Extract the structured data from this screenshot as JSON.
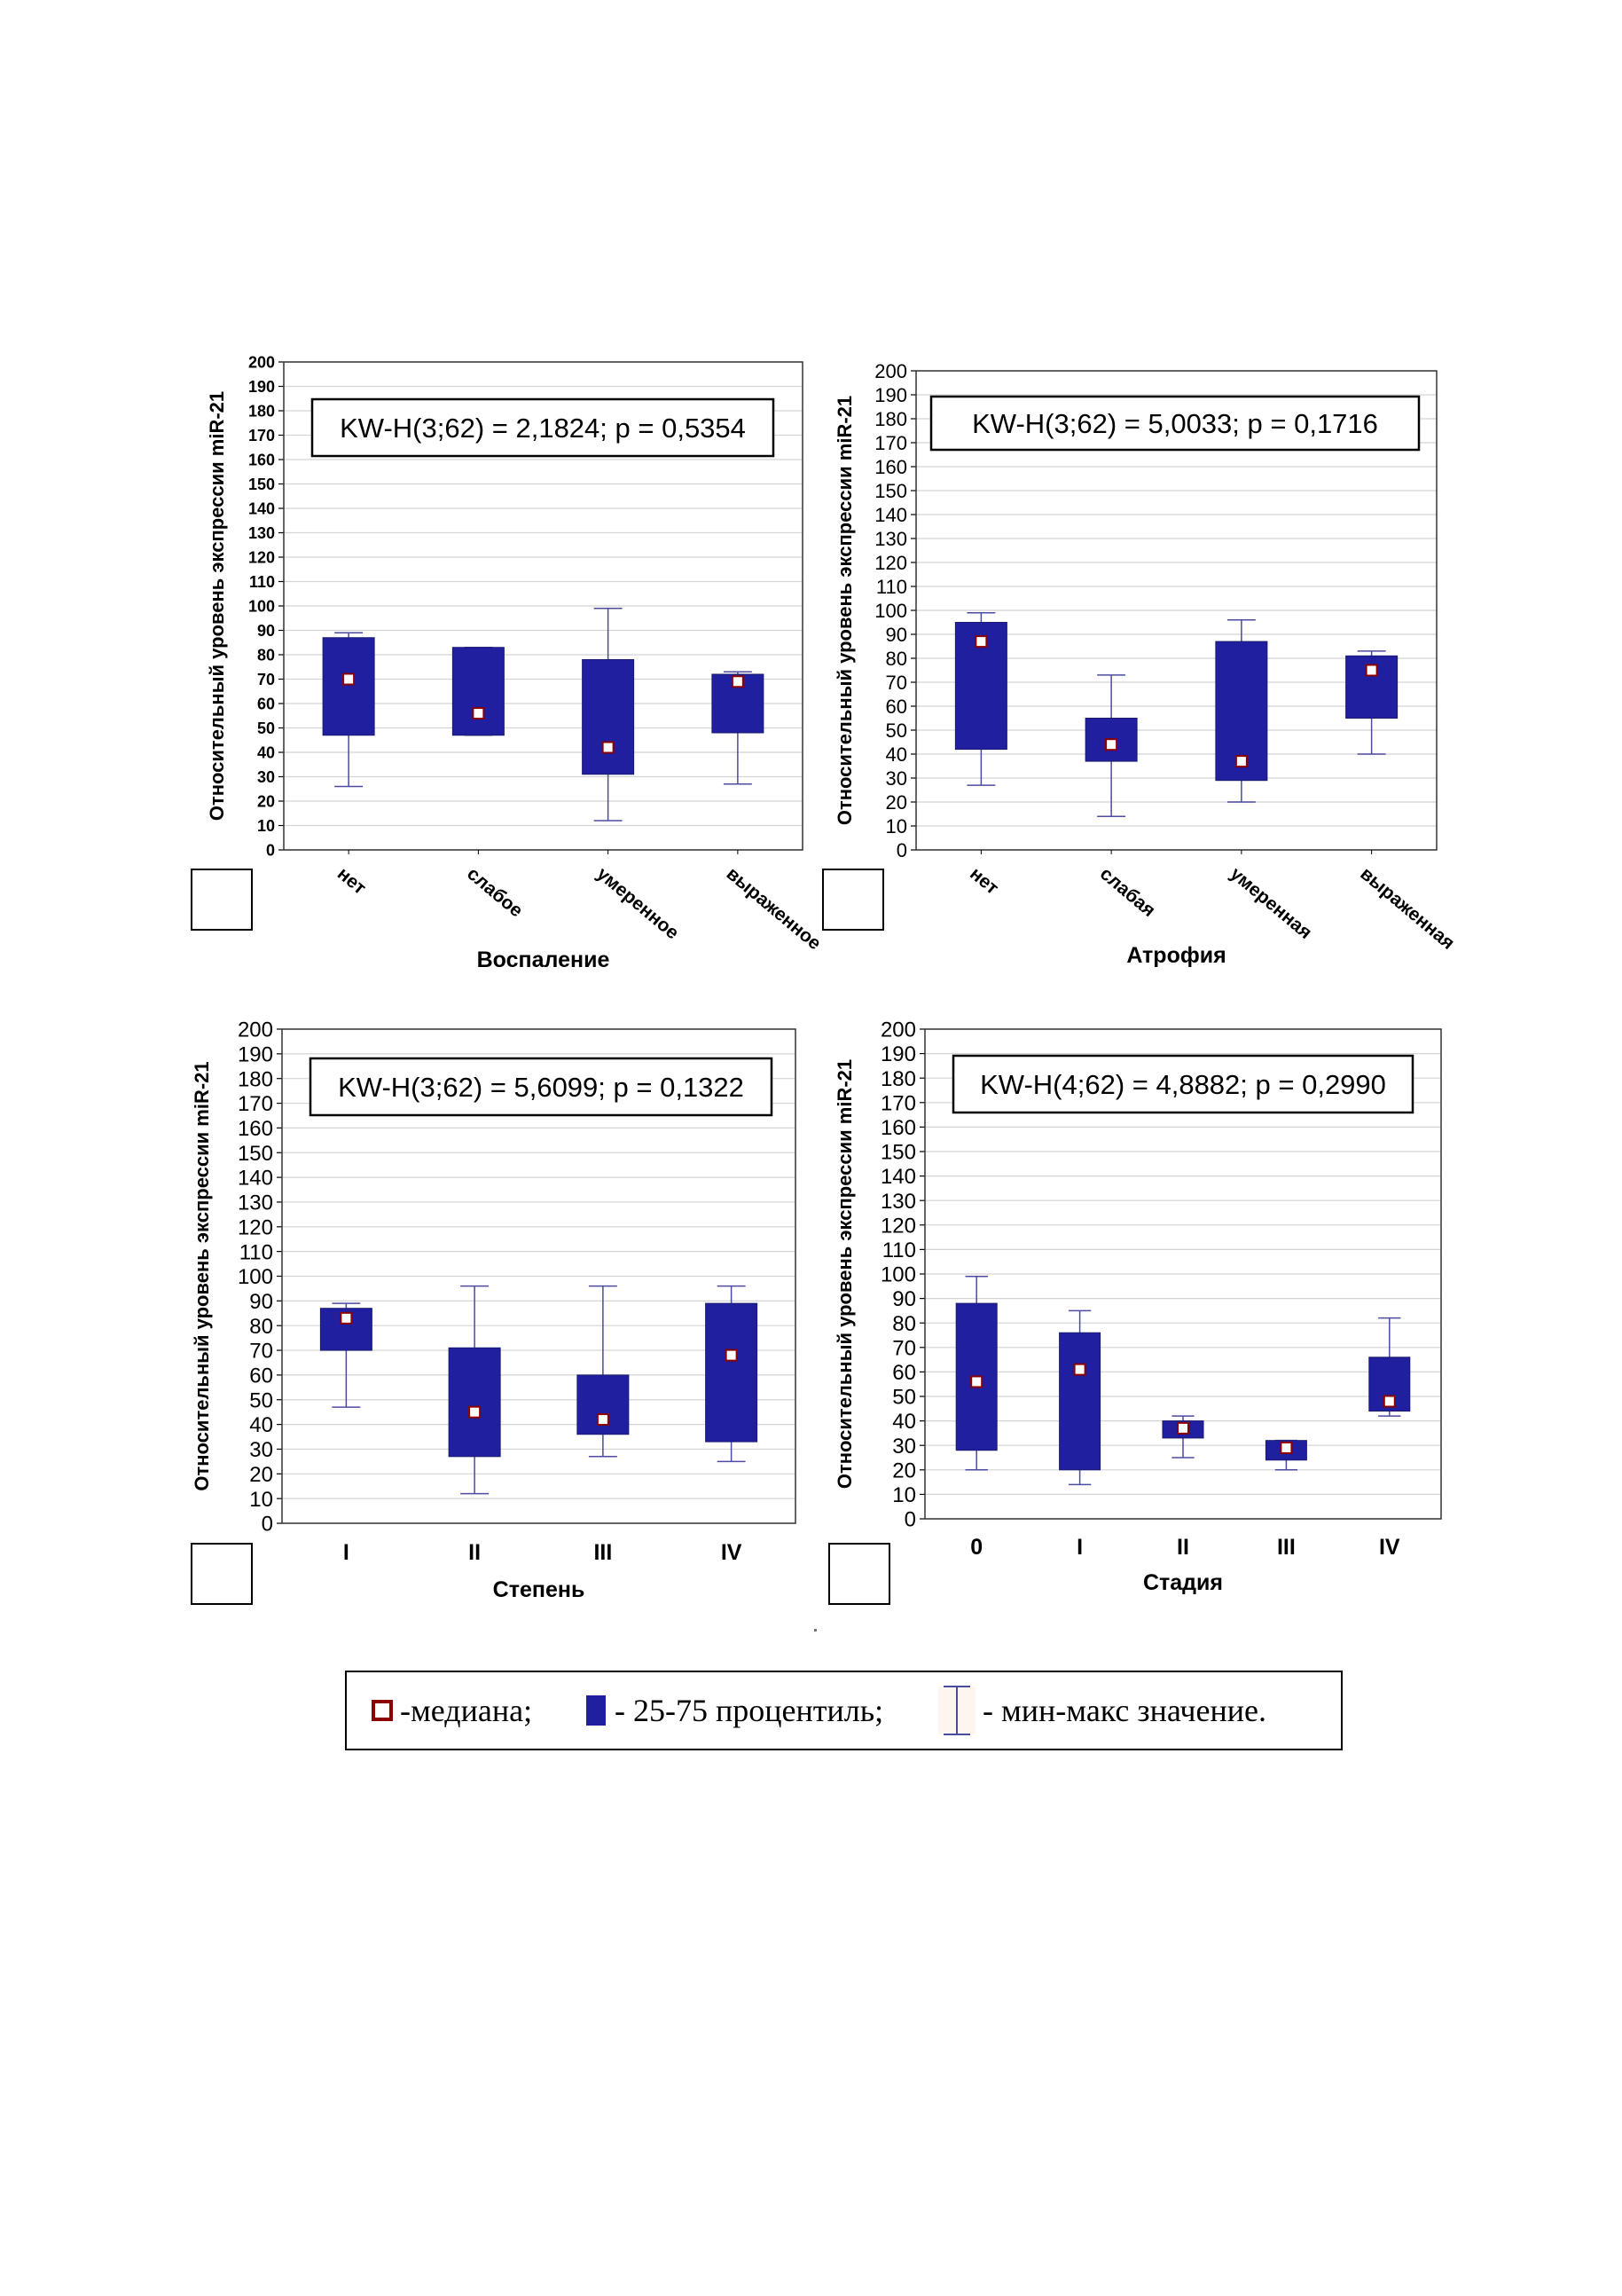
{
  "chart_data": [
    {
      "type": "box",
      "panel_id": "p1",
      "stat_text": "KW-H(3;62) = 2,1824; p = 0,5354",
      "ylabel": "Относительный уровень экспрессии miR-21",
      "xlabel": "Воспаление",
      "ylim": [
        0,
        200
      ],
      "ytick_step": 10,
      "yticks_bold": true,
      "category_labels_rotated": true,
      "categories": [
        "нет",
        "слабое",
        "умеренное",
        "выраженное"
      ],
      "boxes": [
        {
          "min": 26,
          "q1": 47,
          "median": 70,
          "q3": 87,
          "max": 89
        },
        {
          "min": 47,
          "q1": 47,
          "median": 56,
          "q3": 83,
          "max": 83
        },
        {
          "min": 12,
          "q1": 31,
          "median": 42,
          "q3": 78,
          "max": 99
        },
        {
          "min": 27,
          "q1": 48,
          "median": 69,
          "q3": 72,
          "max": 73
        }
      ]
    },
    {
      "type": "box",
      "panel_id": "p2",
      "stat_text": "KW-H(3;62) = 5,0033; p = 0,1716",
      "ylabel": "Относительный уровень экспрессии miR-21",
      "xlabel": "Атрофия",
      "ylim": [
        0,
        200
      ],
      "ytick_step": 10,
      "yticks_bold": false,
      "category_labels_rotated": true,
      "categories": [
        "нет",
        "слабая",
        "умеренная",
        "выраженная"
      ],
      "boxes": [
        {
          "min": 27,
          "q1": 42,
          "median": 87,
          "q3": 95,
          "max": 99
        },
        {
          "min": 14,
          "q1": 37,
          "median": 44,
          "q3": 55,
          "max": 73
        },
        {
          "min": 20,
          "q1": 29,
          "median": 37,
          "q3": 87,
          "max": 96
        },
        {
          "min": 40,
          "q1": 55,
          "median": 75,
          "q3": 81,
          "max": 83
        }
      ]
    },
    {
      "type": "box",
      "panel_id": "p3",
      "stat_text": "KW-H(3;62) = 5,6099; p = 0,1322",
      "ylabel": "Относительный уровень экспрессии miR-21",
      "xlabel": "Степень",
      "ylim": [
        0,
        200
      ],
      "ytick_step": 10,
      "yticks_bold": false,
      "category_labels_rotated": false,
      "categories": [
        "I",
        "II",
        "III",
        "IV"
      ],
      "boxes": [
        {
          "min": 47,
          "q1": 70,
          "median": 83,
          "q3": 87,
          "max": 89
        },
        {
          "min": 12,
          "q1": 27,
          "median": 45,
          "q3": 71,
          "max": 96
        },
        {
          "min": 27,
          "q1": 36,
          "median": 42,
          "q3": 60,
          "max": 96
        },
        {
          "min": 25,
          "q1": 33,
          "median": 68,
          "q3": 89,
          "max": 96
        }
      ]
    },
    {
      "type": "box",
      "panel_id": "p4",
      "stat_text": "KW-H(4;62) = 4,8882; p = 0,2990",
      "ylabel": "Относительный уровень экспрессии miR-21",
      "xlabel": "Стадия",
      "ylim": [
        0,
        200
      ],
      "ytick_step": 10,
      "yticks_bold": false,
      "category_labels_rotated": false,
      "categories": [
        "0",
        "I",
        "II",
        "III",
        "IV"
      ],
      "boxes": [
        {
          "min": 20,
          "q1": 28,
          "median": 56,
          "q3": 88,
          "max": 99
        },
        {
          "min": 14,
          "q1": 20,
          "median": 61,
          "q3": 76,
          "max": 85
        },
        {
          "min": 25,
          "q1": 33,
          "median": 37,
          "q3": 40,
          "max": 42
        },
        {
          "min": 20,
          "q1": 24,
          "median": 29,
          "q3": 32,
          "max": 32
        },
        {
          "min": 42,
          "q1": 44,
          "median": 48,
          "q3": 66,
          "max": 82
        }
      ]
    }
  ],
  "legend": {
    "median_label": "-медиана;",
    "box_label": "- 25-75 процентиль;",
    "whisker_label": "- мин-макс значение."
  },
  "colors": {
    "box_fill": "#1f1fa0",
    "median_marker_fill": "#ffffff",
    "median_marker_border": "#8b0000",
    "whisker": "#4b4ba0",
    "grid": "#d4d4d4"
  }
}
